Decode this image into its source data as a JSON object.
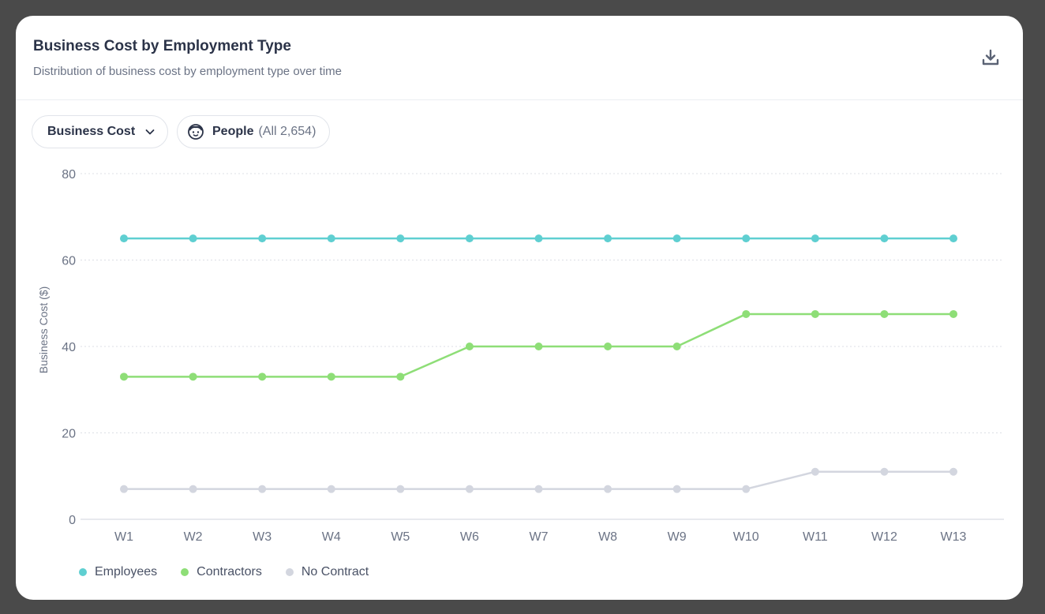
{
  "header": {
    "title": "Business Cost by Employment Type",
    "subtitle": "Distribution of business cost by employment type over time"
  },
  "controls": {
    "metric_label": "Business Cost",
    "people_label": "People",
    "people_count": "(All 2,654)"
  },
  "colors": {
    "employees": "#5fcfd1",
    "contractors": "#8ede77",
    "no_contract": "#d3d6df"
  },
  "chart_data": {
    "type": "line",
    "title": "Business Cost by Employment Type",
    "subtitle": "Distribution of business cost by employment type over time",
    "xlabel": "",
    "ylabel": "Business Cost ($)",
    "ylim": [
      0,
      80
    ],
    "yticks": [
      0,
      20,
      40,
      60,
      80
    ],
    "grid": true,
    "legend_position": "bottom-left",
    "categories": [
      "W1",
      "W2",
      "W3",
      "W4",
      "W5",
      "W6",
      "W7",
      "W8",
      "W9",
      "W10",
      "W11",
      "W12",
      "W13"
    ],
    "series": [
      {
        "name": "Employees",
        "color": "#5fcfd1",
        "values": [
          65,
          65,
          65,
          65,
          65,
          65,
          65,
          65,
          65,
          65,
          65,
          65,
          65
        ]
      },
      {
        "name": "Contractors",
        "color": "#8ede77",
        "values": [
          33,
          33,
          33,
          33,
          33,
          40,
          40,
          40,
          40,
          47.5,
          47.5,
          47.5,
          47.5
        ]
      },
      {
        "name": "No Contract",
        "color": "#d3d6df",
        "values": [
          7,
          7,
          7,
          7,
          7,
          7,
          7,
          7,
          7,
          7,
          11,
          11,
          11
        ]
      }
    ]
  }
}
